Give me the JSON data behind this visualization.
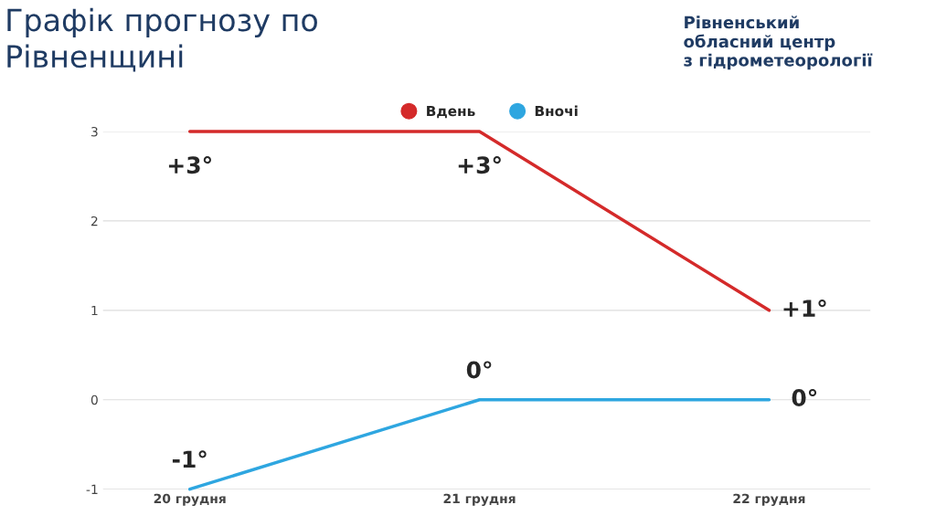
{
  "chart_data": {
    "type": "line",
    "title": "Графік прогнозу по\nРівненщині",
    "annotations": [
      "Рівненський\nобласний центр\nз гідрометеорології"
    ],
    "categories": [
      "20 грудня",
      "21 грудня",
      "22 грудня"
    ],
    "series": [
      {
        "name": "Вдень",
        "color": "#d42a2a",
        "values": [
          3,
          3,
          1
        ],
        "value_labels": [
          "+3°",
          "+3°",
          "+1°"
        ]
      },
      {
        "name": "Вночі",
        "color": "#2ea6e0",
        "values": [
          -1,
          0,
          0
        ],
        "value_labels": [
          "-1°",
          "0°",
          "0°"
        ]
      }
    ],
    "ylim": [
      -1,
      3
    ],
    "yticks": [
      -1,
      0,
      1,
      2,
      3
    ],
    "grid": "y",
    "legend": "top",
    "marker": "none",
    "line_style": "solid"
  }
}
